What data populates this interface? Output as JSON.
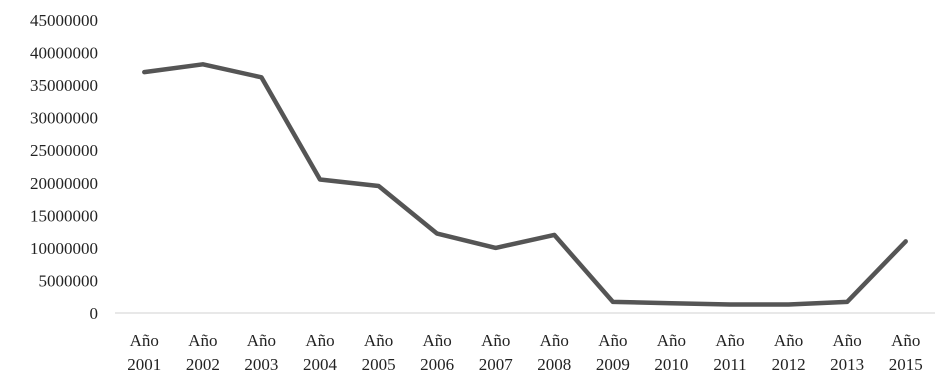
{
  "chart_data": {
    "type": "line",
    "title": "",
    "xlabel": "",
    "ylabel": "",
    "categories": [
      [
        "Año",
        "2001"
      ],
      [
        "Año",
        "2002"
      ],
      [
        "Año",
        "2003"
      ],
      [
        "Año",
        "2004"
      ],
      [
        "Año",
        "2005"
      ],
      [
        "Año",
        "2006"
      ],
      [
        "Año",
        "2007"
      ],
      [
        "Año",
        "2008"
      ],
      [
        "Año",
        "2009"
      ],
      [
        "Año",
        "2010"
      ],
      [
        "Año",
        "2011"
      ],
      [
        "Año",
        "2012"
      ],
      [
        "Año",
        "2013"
      ],
      [
        "Año",
        "2015"
      ]
    ],
    "series": [
      {
        "values": [
          37000000,
          38200000,
          36200000,
          20500000,
          19500000,
          12200000,
          10000000,
          12000000,
          1700000,
          1500000,
          1300000,
          1300000,
          1700000,
          11000000
        ],
        "color": "#555555"
      }
    ],
    "ylim": [
      0,
      45000000
    ],
    "yticks": [
      "0",
      "5000000",
      "10000000",
      "15000000",
      "20000000",
      "25000000",
      "30000000",
      "35000000",
      "40000000",
      "45000000"
    ],
    "ytick_values": [
      0,
      5000000,
      10000000,
      15000000,
      20000000,
      25000000,
      30000000,
      35000000,
      40000000,
      45000000
    ],
    "grid": false,
    "legend": "none"
  }
}
